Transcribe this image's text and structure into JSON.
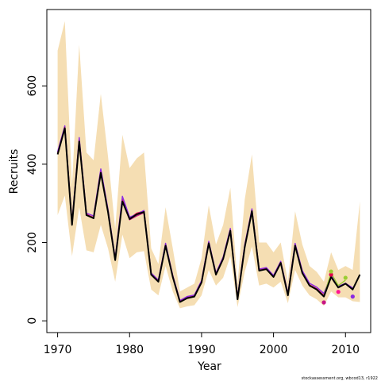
{
  "chart_data": {
    "type": "line",
    "title": "",
    "xlabel": "Year",
    "ylabel": "Recruits",
    "xlim": [
      1968.5,
      2013.5
    ],
    "ylim": [
      -30,
      795
    ],
    "xticks": [
      1970,
      1980,
      1990,
      2000,
      2010
    ],
    "yticks": [
      0,
      200,
      400,
      600
    ],
    "grid": false,
    "legend": "none",
    "credit": "stockassessment.org, wbcod13, r1922",
    "band": {
      "color": "#f5deb3",
      "x": [
        1970,
        1971,
        1972,
        1973,
        1974,
        1975,
        1976,
        1977,
        1978,
        1979,
        1980,
        1981,
        1982,
        1983,
        1984,
        1985,
        1986,
        1987,
        1988,
        1989,
        1990,
        1991,
        1992,
        1993,
        1994,
        1995,
        1996,
        1997,
        1998,
        1999,
        2000,
        2001,
        2002,
        2003,
        2004,
        2005,
        2006,
        2007,
        2008,
        2009,
        2010,
        2011,
        2012
      ],
      "lower": [
        270,
        320,
        165,
        290,
        180,
        175,
        245,
        185,
        100,
        220,
        160,
        175,
        178,
        80,
        65,
        140,
        75,
        32,
        37,
        40,
        65,
        130,
        90,
        110,
        165,
        35,
        125,
        190,
        90,
        95,
        85,
        100,
        45,
        130,
        90,
        65,
        55,
        38,
        75,
        60,
        60,
        50,
        48
      ],
      "upper": [
        690,
        765,
        345,
        705,
        430,
        410,
        580,
        420,
        235,
        475,
        390,
        415,
        430,
        185,
        145,
        290,
        185,
        75,
        85,
        95,
        160,
        295,
        195,
        245,
        340,
        95,
        310,
        425,
        200,
        200,
        175,
        200,
        100,
        280,
        195,
        140,
        125,
        100,
        175,
        130,
        140,
        130,
        305
      ]
    },
    "series": [
      {
        "color": "#000000",
        "x": [
          1970,
          1971,
          1972,
          1973,
          1974,
          1975,
          1976,
          1977,
          1978,
          1979,
          1980,
          1981,
          1982,
          1983,
          1984,
          1985,
          1986,
          1987,
          1988,
          1989,
          1990,
          1991,
          1992,
          1993,
          1994,
          1995,
          1996,
          1997,
          1998,
          1999,
          2000,
          2001,
          2002,
          2003,
          2004,
          2005,
          2006,
          2007,
          2008,
          2009,
          2010,
          2011,
          2012
        ],
        "values": [
          425,
          492,
          245,
          458,
          270,
          262,
          378,
          278,
          155,
          305,
          260,
          272,
          278,
          118,
          100,
          192,
          112,
          48,
          58,
          62,
          98,
          198,
          118,
          158,
          230,
          55,
          188,
          280,
          128,
          132,
          112,
          148,
          65,
          192,
          122,
          90,
          80,
          62,
          112,
          85,
          95,
          80,
          118
        ]
      },
      {
        "color": "#e0004a",
        "x": [
          1970,
          1971,
          1972,
          1973,
          1974,
          1975,
          1976,
          1977,
          1978,
          1979,
          1980,
          1981,
          1982,
          1983,
          1984,
          1985,
          1986,
          1987,
          1988,
          1989,
          1990,
          1991,
          1992,
          1993,
          1994,
          1995,
          1996,
          1997,
          1998,
          1999,
          2000,
          2001,
          2002,
          2003,
          2004,
          2005,
          2006,
          2007,
          2008,
          2009
        ],
        "values": [
          428,
          495,
          248,
          462,
          272,
          264,
          382,
          280,
          157,
          310,
          262,
          275,
          280,
          120,
          102,
          195,
          114,
          50,
          60,
          64,
          100,
          200,
          120,
          160,
          232,
          57,
          190,
          282,
          130,
          134,
          114,
          150,
          67,
          195,
          124,
          92,
          82,
          65,
          115,
          85
        ]
      },
      {
        "color": "#8a2be2",
        "x": [
          1970,
          1971,
          1972,
          1973,
          1974,
          1975,
          1976,
          1977,
          1978,
          1979,
          1980,
          1981,
          1982,
          1983,
          1984,
          1985,
          1986,
          1987,
          1988,
          1989,
          1990,
          1991,
          1992,
          1993,
          1994,
          1995,
          1996,
          1997,
          1998,
          1999,
          2000,
          2001,
          2002,
          2003,
          2004,
          2005,
          2006,
          2007,
          2008,
          2009,
          2010,
          2011
        ],
        "values": [
          432,
          498,
          252,
          468,
          275,
          268,
          388,
          285,
          160,
          318,
          265,
          272,
          282,
          122,
          104,
          198,
          116,
          52,
          62,
          66,
          103,
          203,
          122,
          163,
          236,
          60,
          194,
          286,
          132,
          136,
          116,
          152,
          70,
          198,
          128,
          96,
          86,
          70,
          116,
          88,
          96,
          84
        ]
      },
      {
        "color": "#c71585",
        "x": [
          1970,
          1971,
          1972,
          1973,
          1974,
          1975,
          1976,
          1977,
          1978,
          1979,
          1980,
          1981,
          1982,
          1983,
          1984,
          1985,
          1986,
          1987,
          1988,
          1989,
          1990,
          1991,
          1992,
          1993,
          1994,
          1995,
          1996,
          1997,
          1998,
          1999,
          2000,
          2001,
          2002,
          2003,
          2004,
          2005,
          2006,
          2007
        ],
        "values": [
          426,
          494,
          246,
          460,
          271,
          263,
          380,
          279,
          156,
          306,
          258,
          268,
          276,
          119,
          101,
          193,
          113,
          49,
          59,
          63,
          99,
          199,
          119,
          159,
          231,
          56,
          189,
          281,
          129,
          133,
          113,
          149,
          66,
          193,
          123,
          91,
          81,
          63
        ]
      },
      {
        "color": "#9acd32",
        "x": [
          2007,
          2008,
          2009,
          2010
        ],
        "values": [
          64,
          122,
          90,
          104
        ]
      }
    ],
    "endpoints": [
      {
        "x": 2007,
        "y": 47,
        "color": "#c71585"
      },
      {
        "x": 2008,
        "y": 118,
        "color": "#e0004a"
      },
      {
        "x": 2008,
        "y": 126,
        "color": "#9acd32"
      },
      {
        "x": 2009,
        "y": 74,
        "color": "#ff1493"
      },
      {
        "x": 2010,
        "y": 110,
        "color": "#9acd32"
      },
      {
        "x": 2011,
        "y": 62,
        "color": "#8a2be2"
      }
    ]
  }
}
